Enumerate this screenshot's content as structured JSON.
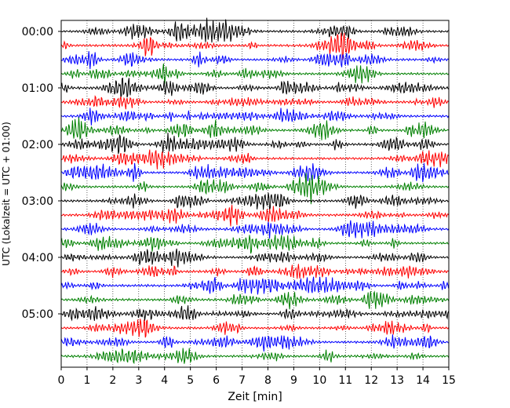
{
  "chart_data": {
    "type": "line",
    "title": "",
    "xlabel": "Zeit  [min]",
    "ylabel": "UTC (Lokalzeit = UTC + 01:00)",
    "xlim": [
      0,
      15
    ],
    "x_ticks": [
      "0",
      "1",
      "2",
      "3",
      "4",
      "5",
      "6",
      "7",
      "8",
      "9",
      "10",
      "11",
      "12",
      "13",
      "14",
      "15"
    ],
    "y_tick_labels": [
      "00:00",
      "01:00",
      "02:00",
      "03:00",
      "04:00",
      "05:00"
    ],
    "rows_per_hour": 4,
    "row_minutes": 15,
    "trace_count": 24,
    "trace_colors": [
      "#000000",
      "#ff0000",
      "#0000ff",
      "#008000"
    ],
    "grid": "vertical dotted at each minute",
    "legend": "none"
  }
}
